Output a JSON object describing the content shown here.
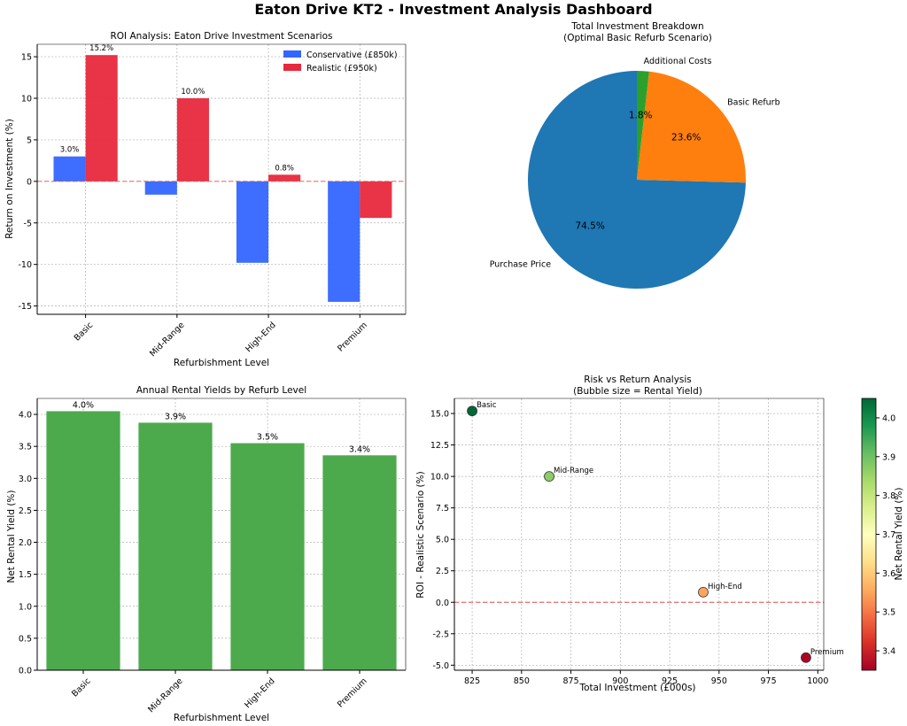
{
  "title": "Eaton Drive KT2 - Investment Analysis Dashboard",
  "charts": [
    {
      "type": "bar",
      "title": "ROI Analysis: Eaton Drive Investment Scenarios",
      "xlabel": "Refurbishment Level",
      "ylabel": "Return on Investment (%)",
      "categories": [
        "Basic",
        "Mid-Range",
        "High-End",
        "Premium"
      ],
      "series": [
        {
          "name": "Conservative (£850k)",
          "values": [
            3.0,
            -1.6,
            -9.8,
            -14.5
          ],
          "color": "#3366ff"
        },
        {
          "name": "Realistic (£950k)",
          "values": [
            15.2,
            10.0,
            0.8,
            -4.4
          ],
          "color": "#e8283c"
        }
      ],
      "value_labels": [
        "3.0%",
        "15.2%",
        "10.0%",
        "0.8%"
      ],
      "ylim": [
        -16,
        16.5
      ],
      "yticks": [
        -15,
        -10,
        -5,
        0,
        5,
        10,
        15
      ],
      "reference_line": 0,
      "legend": "top-right"
    },
    {
      "type": "pie",
      "title": "Total Investment Breakdown\n(Optimal Basic Refurb Scenario)",
      "labels": [
        "Purchase Price",
        "Basic Refurb",
        "Additional Costs"
      ],
      "values": [
        74.5,
        23.6,
        1.8
      ],
      "pct_labels": [
        "74.5%",
        "23.6%",
        "1.8%"
      ],
      "colors": [
        "#1f77b4",
        "#ff7f0e",
        "#2ca02c"
      ]
    },
    {
      "type": "bar",
      "title": "Annual Rental Yields by Refurb Level",
      "xlabel": "Refurbishment Level",
      "ylabel": "Net Rental Yield (%)",
      "categories": [
        "Basic",
        "Mid-Range",
        "High-End",
        "Premium"
      ],
      "values": [
        4.05,
        3.87,
        3.55,
        3.36
      ],
      "value_labels": [
        "4.0%",
        "3.9%",
        "3.5%",
        "3.4%"
      ],
      "color": "#4caa4c",
      "ylim": [
        0,
        4.25
      ],
      "yticks": [
        0.0,
        0.5,
        1.0,
        1.5,
        2.0,
        2.5,
        3.0,
        3.5,
        4.0
      ]
    },
    {
      "type": "scatter",
      "title": "Risk vs Return Analysis\n(Bubble size = Rental Yield)",
      "xlabel": "Total Investment (£000s)",
      "ylabel": "ROI - Realistic Scenario (%)",
      "points": [
        {
          "label": "Basic",
          "x": 825,
          "y": 15.2,
          "yield": 4.05
        },
        {
          "label": "Mid-Range",
          "x": 864,
          "y": 10.0,
          "yield": 3.87
        },
        {
          "label": "High-End",
          "x": 942,
          "y": 0.8,
          "yield": 3.55
        },
        {
          "label": "Premium",
          "x": 994,
          "y": -4.4,
          "yield": 3.36
        }
      ],
      "xlim": [
        816,
        1003
      ],
      "ylim": [
        -5.4,
        16.2
      ],
      "xticks": [
        825,
        850,
        875,
        900,
        925,
        950,
        975,
        1000
      ],
      "yticks": [
        -5.0,
        -2.5,
        0.0,
        2.5,
        5.0,
        7.5,
        10.0,
        12.5,
        15.0
      ],
      "reference_line": 0,
      "colorbar": {
        "label": "Net Rental Yield (%)",
        "range": [
          3.35,
          4.05
        ],
        "ticks": [
          3.4,
          3.5,
          3.6,
          3.7,
          3.8,
          3.9,
          4.0
        ]
      }
    }
  ]
}
